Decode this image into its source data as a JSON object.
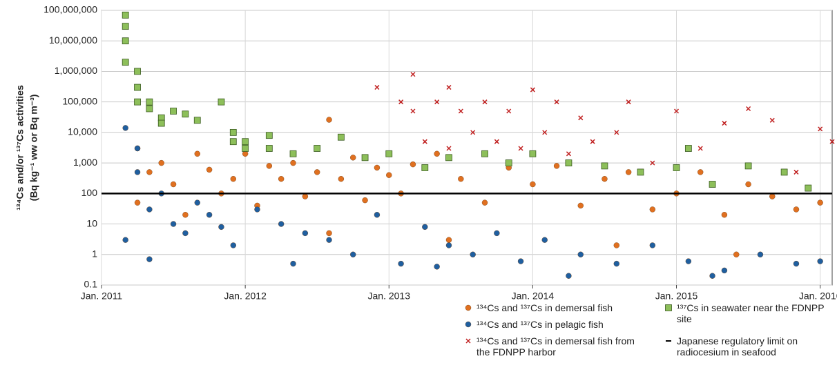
{
  "chart_data": {
    "type": "scatter",
    "ylabel": [
      "¹³⁴Cs and/or ¹³⁷Cs activities",
      "(Bq kg⁻¹ ww or Bq m⁻³)"
    ],
    "log_y": true,
    "grid": true,
    "ylim": [
      0.1,
      100000000
    ],
    "yticks": [
      {
        "value": 0.1,
        "label": "0.1"
      },
      1,
      10,
      100,
      {
        "value": 1000,
        "label": "1,000"
      },
      {
        "value": 10000,
        "label": "10,000"
      },
      {
        "value": 100000,
        "label": "100,000"
      },
      {
        "value": 1000000,
        "label": "1,000,000"
      },
      {
        "value": 10000000,
        "label": "10,000,000"
      },
      {
        "value": 100000000,
        "label": "100,000,000"
      }
    ],
    "xlim": [
      "2011-01",
      "2016-02"
    ],
    "xticks": [
      {
        "value": "2011-01",
        "label": "Jan. 2011"
      },
      {
        "value": "2012-01",
        "label": "Jan. 2012"
      },
      {
        "value": "2013-01",
        "label": "Jan. 2013"
      },
      {
        "value": "2014-01",
        "label": "Jan. 2014"
      },
      {
        "value": "2015-01",
        "label": "Jan. 2015"
      },
      {
        "value": "2016-01",
        "label": "Jan. 2016"
      }
    ],
    "limit": 100,
    "limit_label": "Japanese regulatory limit on radiocesium in seafood",
    "limit_color": "#000000",
    "series": [
      {
        "name": "¹³⁴Cs and ¹³⁷Cs in demersal fish",
        "color": "#e07020",
        "marker": "circle",
        "x": [
          "2011-04",
          "2011-04",
          "2011-05",
          "2011-06",
          "2011-07",
          "2011-08",
          "2011-09",
          "2011-10",
          "2011-11",
          "2011-12",
          "2012-01",
          "2012-02",
          "2012-03",
          "2012-04",
          "2012-05",
          "2012-06",
          "2012-07",
          "2012-08",
          "2012-09",
          "2012-10",
          "2012-11",
          "2012-12",
          "2013-01",
          "2013-02",
          "2013-03",
          "2013-05",
          "2013-07",
          "2013-09",
          "2013-11",
          "2014-01",
          "2014-03",
          "2014-05",
          "2014-07",
          "2014-09",
          "2014-11",
          "2015-01",
          "2015-03",
          "2015-05",
          "2015-07",
          "2015-09",
          "2015-11",
          "2016-01",
          "2012-08",
          "2013-06",
          "2014-08",
          "2015-06"
        ],
        "values": [
          3000,
          50,
          500,
          1000,
          200,
          20,
          2000,
          600,
          100,
          300,
          2000,
          40,
          800,
          300,
          1000,
          80,
          500,
          26000,
          300,
          1500,
          60,
          700,
          400,
          100,
          900,
          2000,
          300,
          50,
          700,
          200,
          800,
          40,
          300,
          500,
          30,
          100,
          500,
          20,
          200,
          80,
          30,
          50,
          5,
          3,
          2,
          1
        ]
      },
      {
        "name": "¹³⁴Cs and ¹³⁷Cs in pelagic fish",
        "color": "#1f5fa0",
        "marker": "circle",
        "x": [
          "2011-03",
          "2011-03",
          "2011-04",
          "2011-04",
          "2011-05",
          "2011-06",
          "2011-07",
          "2011-08",
          "2011-09",
          "2011-10",
          "2011-11",
          "2011-12",
          "2012-02",
          "2012-04",
          "2012-06",
          "2012-08",
          "2012-10",
          "2012-12",
          "2013-02",
          "2013-04",
          "2013-06",
          "2013-08",
          "2013-10",
          "2013-12",
          "2014-02",
          "2014-05",
          "2014-08",
          "2014-11",
          "2015-02",
          "2015-05",
          "2015-08",
          "2015-11",
          "2016-01",
          "2011-05",
          "2012-05",
          "2013-05",
          "2014-04",
          "2015-04"
        ],
        "values": [
          14000,
          3,
          500,
          3000,
          30,
          100,
          10,
          5,
          50,
          20,
          8,
          2,
          30,
          10,
          5,
          3,
          1,
          20,
          0.5,
          8,
          2,
          1,
          5,
          0.6,
          3,
          1,
          0.5,
          2,
          0.6,
          0.3,
          1,
          0.5,
          0.6,
          0.7,
          0.5,
          0.4,
          0.2,
          0.2
        ]
      },
      {
        "name": "¹³⁴Cs and ¹³⁷Cs in demersal fish from the FDNPP harbor",
        "color": "#c02020",
        "marker": "cross",
        "x": [
          "2012-12",
          "2013-01",
          "2013-02",
          "2013-03",
          "2013-03",
          "2013-04",
          "2013-05",
          "2013-06",
          "2013-06",
          "2013-07",
          "2013-08",
          "2013-09",
          "2013-10",
          "2013-11",
          "2013-12",
          "2014-01",
          "2014-02",
          "2014-03",
          "2014-04",
          "2014-05",
          "2014-06",
          "2014-08",
          "2014-09",
          "2014-11",
          "2015-01",
          "2015-03",
          "2015-05",
          "2015-07",
          "2015-09",
          "2015-11",
          "2016-01",
          "2016-02"
        ],
        "values": [
          300000,
          2000,
          100000,
          800000,
          50000,
          5000,
          100000,
          300000,
          3000,
          50000,
          10000,
          100000,
          5000,
          50000,
          3000,
          250000,
          10000,
          100000,
          2000,
          30000,
          5000,
          10000,
          100000,
          1000,
          50000,
          3000,
          20000,
          60000,
          25000,
          500,
          13000,
          5000
        ]
      },
      {
        "name": "¹³⁷Cs in seawater near the FDNPP  site",
        "color": "#8dbf5a",
        "marker": "square",
        "x": [
          "2011-03",
          "2011-03",
          "2011-03",
          "2011-03",
          "2011-04",
          "2011-04",
          "2011-04",
          "2011-05",
          "2011-05",
          "2011-06",
          "2011-06",
          "2011-07",
          "2011-08",
          "2011-09",
          "2011-11",
          "2011-12",
          "2011-12",
          "2012-01",
          "2012-01",
          "2012-03",
          "2012-03",
          "2012-05",
          "2012-07",
          "2012-09",
          "2012-11",
          "2013-01",
          "2013-04",
          "2013-06",
          "2013-09",
          "2013-11",
          "2014-01",
          "2014-04",
          "2014-07",
          "2014-10",
          "2015-01",
          "2015-02",
          "2015-04",
          "2015-07",
          "2015-10",
          "2015-12"
        ],
        "values": [
          2000000,
          30000000,
          70000000,
          10000000,
          1000000,
          300000,
          100000,
          100000,
          60000,
          30000,
          20000,
          50000,
          40000,
          25000,
          100000,
          5000,
          10000,
          5000,
          3000,
          3000,
          8000,
          2000,
          3000,
          7000,
          1500,
          2000,
          700,
          1500,
          2000,
          1000,
          2000,
          1000,
          800,
          500,
          700,
          3000,
          200,
          800,
          500,
          150
        ]
      }
    ]
  }
}
